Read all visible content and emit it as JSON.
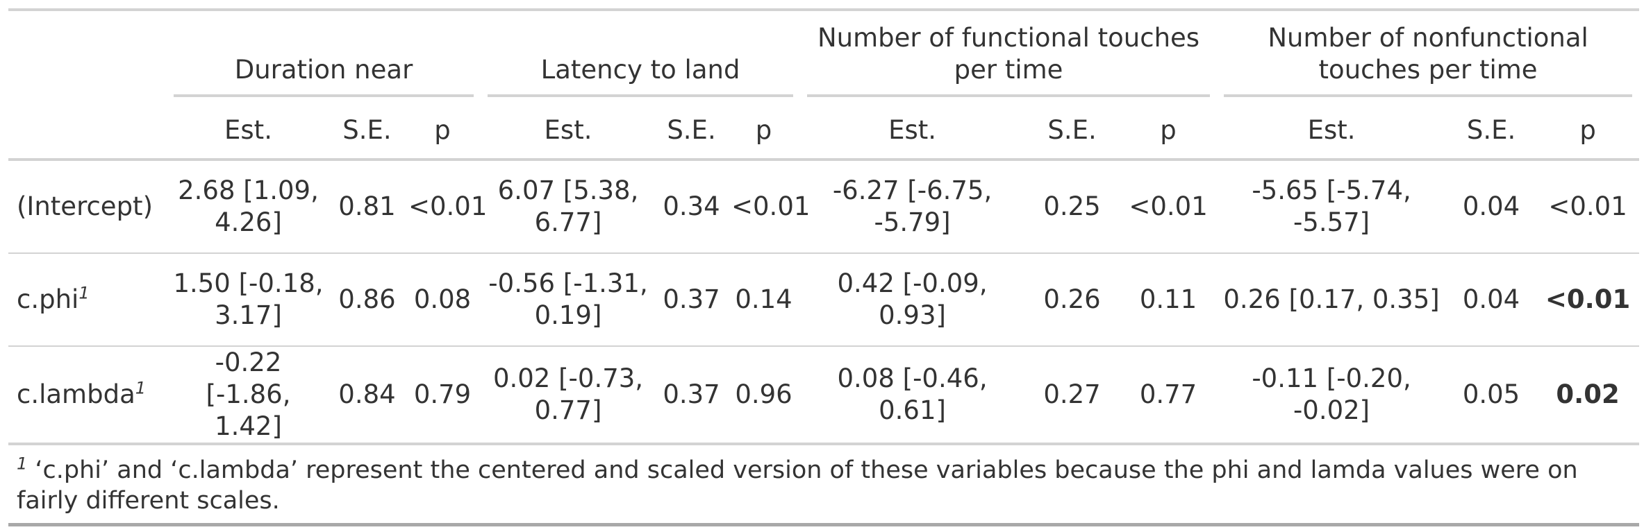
{
  "table": {
    "spanners": [
      {
        "label": "Duration near"
      },
      {
        "label": "Latency to land"
      },
      {
        "label": "Number of functional touches per time"
      },
      {
        "label": "Number of nonfunctional touches per time"
      }
    ],
    "column_headers": [
      "Est.",
      "S.E.",
      "p",
      "Est.",
      "S.E.",
      "p",
      "Est.",
      "S.E.",
      "p",
      "Est.",
      "S.E.",
      "p"
    ],
    "rows": [
      {
        "label": "(Intercept)",
        "footnote_mark": "",
        "cells": [
          "2.68 [1.09, 4.26]",
          "0.81",
          "<0.01",
          "6.07 [5.38, 6.77]",
          "0.34",
          "<0.01",
          "-6.27 [-6.75, -5.79]",
          "0.25",
          "<0.01",
          "-5.65 [-5.74, -5.57]",
          "0.04",
          "<0.01"
        ],
        "bold": [
          false,
          false,
          false,
          false,
          false,
          false,
          false,
          false,
          false,
          false,
          false,
          false
        ]
      },
      {
        "label": "c.phi",
        "footnote_mark": "1",
        "cells": [
          "1.50 [-0.18, 3.17]",
          "0.86",
          "0.08",
          "-0.56 [-1.31, 0.19]",
          "0.37",
          "0.14",
          "0.42 [-0.09, 0.93]",
          "0.26",
          "0.11",
          "0.26 [0.17, 0.35]",
          "0.04",
          "<0.01"
        ],
        "bold": [
          false,
          false,
          false,
          false,
          false,
          false,
          false,
          false,
          false,
          false,
          false,
          true
        ]
      },
      {
        "label": "c.lambda",
        "footnote_mark": "1",
        "cells": [
          "-0.22 [-1.86, 1.42]",
          "0.84",
          "0.79",
          "0.02 [-0.73, 0.77]",
          "0.37",
          "0.96",
          "0.08 [-0.46, 0.61]",
          "0.27",
          "0.77",
          "-0.11 [-0.20, -0.02]",
          "0.05",
          "0.02"
        ],
        "bold": [
          false,
          false,
          false,
          false,
          false,
          false,
          false,
          false,
          false,
          false,
          false,
          true
        ]
      }
    ],
    "footnote": {
      "mark": "1",
      "text": " ‘c.phi’ and ‘c.lambda’ represent the centered and scaled version of these variables because the phi and lamda values were on fairly different scales."
    }
  }
}
